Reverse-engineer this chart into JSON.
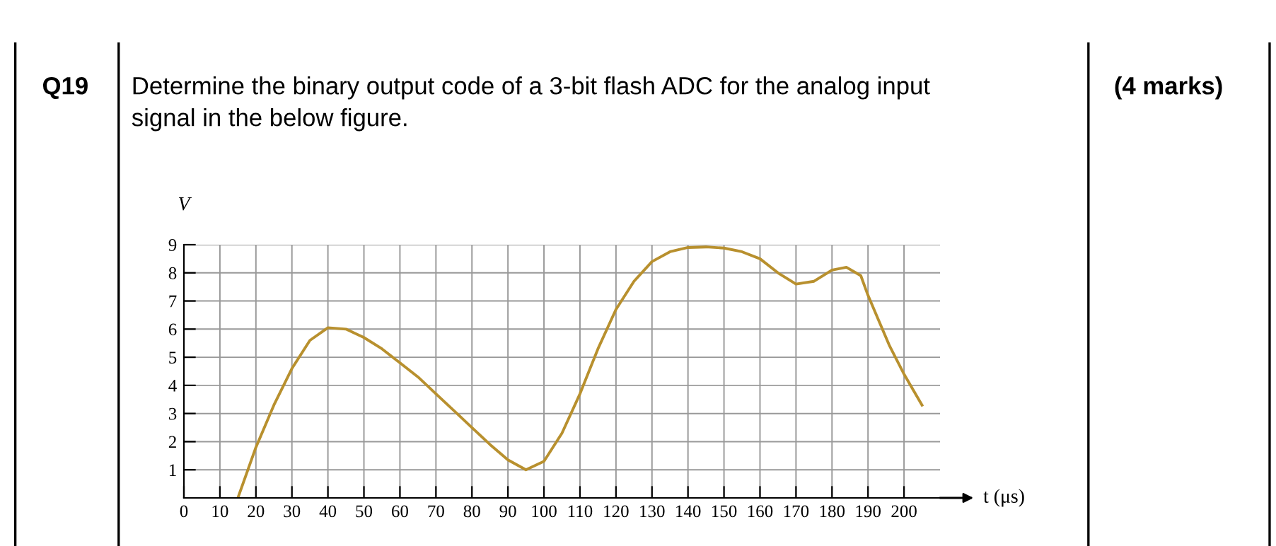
{
  "chart_data": {
    "type": "line",
    "xlabel": "t (μs)",
    "ylabel": "V",
    "annotations": [
      "Q19",
      "Determine the binary output code of a 3-bit flash ADC for the analog input\nsignal in the below figure.",
      "(4 marks)"
    ],
    "x": [
      15,
      20,
      25,
      30,
      35,
      40,
      45,
      50,
      55,
      60,
      65,
      70,
      75,
      80,
      85,
      90,
      95,
      100,
      105,
      110,
      115,
      120,
      125,
      130,
      135,
      140,
      145,
      150,
      155,
      160,
      165,
      170,
      175,
      180,
      184,
      188,
      190,
      193,
      196,
      200,
      205
    ],
    "series": [
      {
        "color": "#b8902e",
        "values": [
          0,
          1.8,
          3.3,
          4.6,
          5.6,
          6.05,
          6.0,
          5.7,
          5.3,
          4.8,
          4.3,
          3.7,
          3.1,
          2.5,
          1.9,
          1.35,
          1.0,
          1.3,
          2.3,
          3.7,
          5.3,
          6.7,
          7.7,
          8.4,
          8.75,
          8.9,
          8.92,
          8.88,
          8.75,
          8.5,
          8.0,
          7.6,
          7.7,
          8.1,
          8.2,
          7.9,
          7.2,
          6.3,
          5.4,
          4.4,
          3.3
        ]
      }
    ],
    "xlim": [
      0,
      210
    ],
    "ylim": [
      0,
      9
    ],
    "xticks": [
      0,
      10,
      20,
      30,
      40,
      50,
      60,
      70,
      80,
      90,
      100,
      110,
      120,
      130,
      140,
      150,
      160,
      170,
      180,
      190,
      200
    ],
    "yticks": [
      1,
      2,
      3,
      4,
      5,
      6,
      7,
      8,
      9
    ],
    "grid": true,
    "marker": "none",
    "line_style": "solid"
  }
}
